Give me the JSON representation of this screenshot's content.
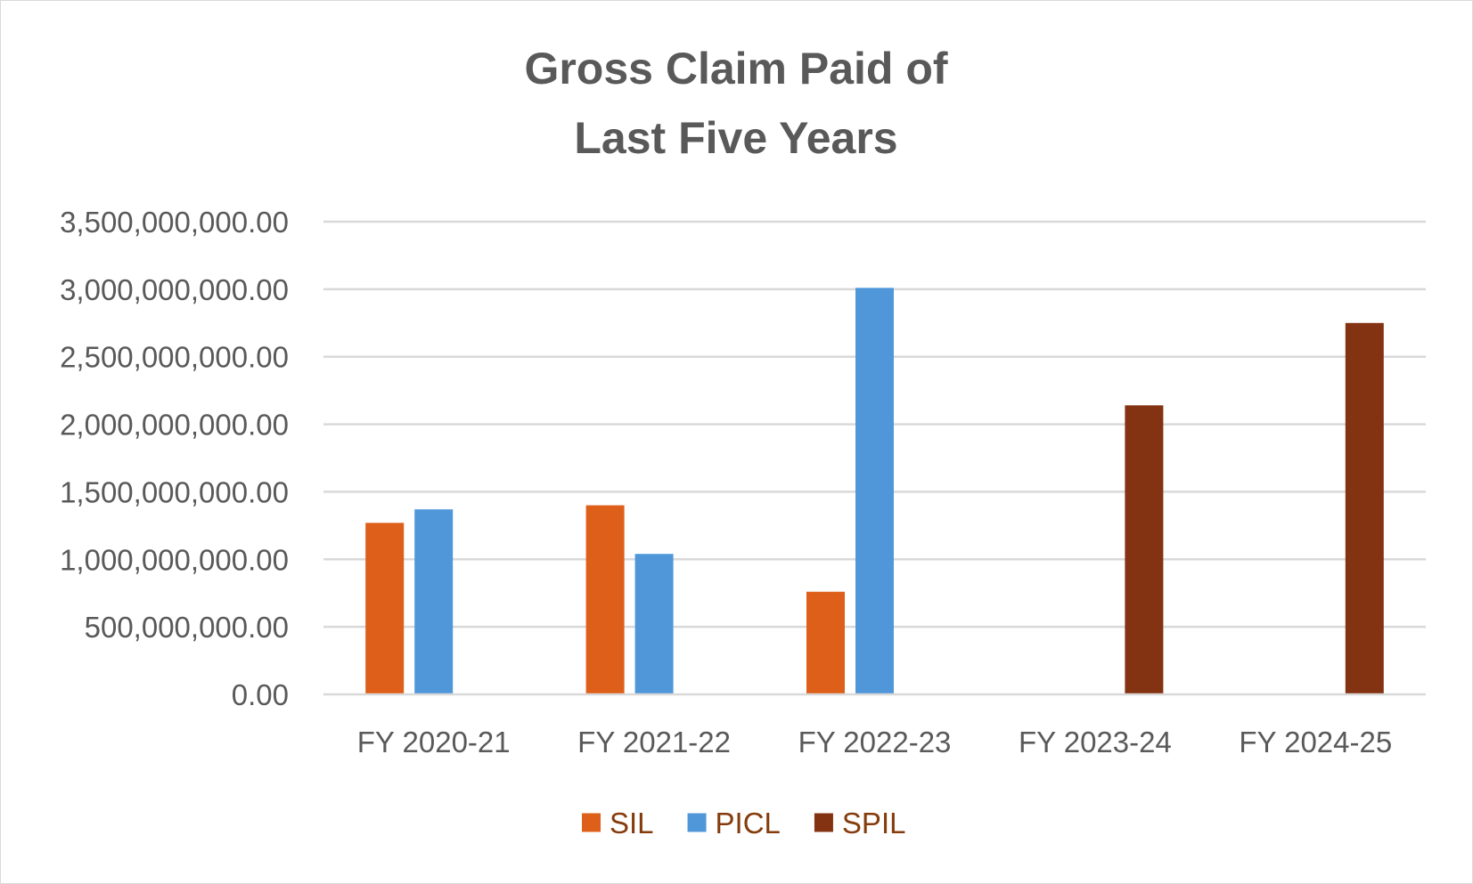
{
  "chart_data": {
    "type": "bar",
    "title_lines": [
      "Gross Claim Paid of",
      "Last Five Years"
    ],
    "xlabel": "",
    "ylabel": "",
    "categories": [
      "FY 2020-21",
      "FY 2021-22",
      "FY 2022-23",
      "FY 2023-24",
      "FY 2024-25"
    ],
    "ylim": [
      0,
      3500000000
    ],
    "ytick_values": [
      0,
      500000000,
      1000000000,
      1500000000,
      2000000000,
      2500000000,
      3000000000,
      3500000000
    ],
    "ytick_labels": [
      "0.00",
      "500,000,000.00",
      "1,000,000,000.00",
      "1,500,000,000.00",
      "2,000,000,000.00",
      "2,500,000,000.00",
      "3,000,000,000.00",
      "3,500,000,000.00"
    ],
    "grid": true,
    "legend_position": "bottom",
    "series": [
      {
        "name": "SIL",
        "color": "#dd5f19",
        "label_color": "#843c0c",
        "values": [
          1270000000,
          1400000000,
          760000000,
          null,
          null
        ]
      },
      {
        "name": "PICL",
        "color": "#5097da",
        "label_color": "#843c0c",
        "values": [
          1370000000,
          1040000000,
          3010000000,
          null,
          null
        ]
      },
      {
        "name": "SPIL",
        "color": "#833311",
        "label_color": "#843c0c",
        "values": [
          null,
          null,
          null,
          2140000000,
          2750000000
        ]
      }
    ]
  }
}
